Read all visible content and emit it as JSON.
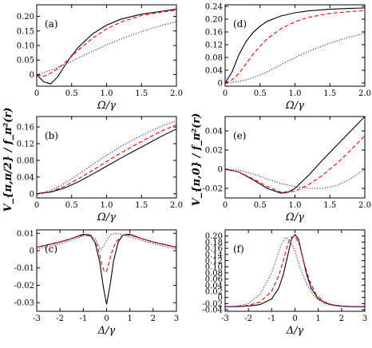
{
  "colors": {
    "solid": "#000000",
    "dashed": "#ff0000",
    "dotted": "#1a1aff"
  },
  "ylabels": {
    "row2_left": "V_{π,π/2} / f_π²(r)",
    "row2_right": "V_{π,0} / f_π²(r)"
  },
  "chart_data": [
    {
      "type": "line",
      "panel_label": "(a)",
      "xlabel": "Ω/γ",
      "xlim": [
        0,
        2
      ],
      "ylim": [
        -0.04,
        0.24
      ],
      "xticks": [
        0,
        0.5,
        1.0,
        1.5,
        2.0
      ],
      "xtick_labels": [
        "0",
        "0.5",
        "1.0",
        "1.5",
        "2.0"
      ],
      "yticks": [
        0,
        0.05,
        0.1,
        0.15,
        0.2
      ],
      "ytick_labels": [
        "0",
        "0.05",
        "0.10",
        "0.15",
        "0.20"
      ],
      "series": [
        {
          "style": "solid",
          "x": [
            0,
            0.1,
            0.2,
            0.3,
            0.4,
            0.5,
            0.6,
            0.8,
            1.0,
            1.2,
            1.5,
            1.8,
            2.0
          ],
          "y": [
            0,
            -0.025,
            -0.032,
            -0.008,
            0.03,
            0.065,
            0.095,
            0.14,
            0.17,
            0.19,
            0.208,
            0.218,
            0.225
          ]
        },
        {
          "style": "dashed",
          "x": [
            0,
            0.1,
            0.2,
            0.3,
            0.4,
            0.5,
            0.6,
            0.8,
            1.0,
            1.2,
            1.5,
            1.8,
            2.0
          ],
          "y": [
            0,
            -0.006,
            0.005,
            0.02,
            0.04,
            0.062,
            0.085,
            0.125,
            0.157,
            0.18,
            0.203,
            0.215,
            0.222
          ]
        },
        {
          "style": "dotted",
          "x": [
            0,
            0.1,
            0.2,
            0.3,
            0.4,
            0.5,
            0.6,
            0.8,
            1.0,
            1.2,
            1.5,
            1.8,
            2.0
          ],
          "y": [
            0,
            0.006,
            0.015,
            0.025,
            0.035,
            0.046,
            0.058,
            0.08,
            0.102,
            0.122,
            0.148,
            0.17,
            0.182
          ]
        }
      ]
    },
    {
      "type": "line",
      "panel_label": "(d)",
      "xlabel": "Ω/γ",
      "xlim": [
        0,
        2
      ],
      "ylim": [
        -0.01,
        0.245
      ],
      "xticks": [
        0,
        0.5,
        1.0,
        1.5,
        2.0
      ],
      "xtick_labels": [
        "0",
        "0.5",
        "1.0",
        "1.5",
        "2.0"
      ],
      "yticks": [
        0,
        0.04,
        0.08,
        0.12,
        0.16,
        0.2,
        0.24
      ],
      "ytick_labels": [
        "0",
        "0.04",
        "0.08",
        "0.12",
        "0.16",
        "0.20",
        "0.24"
      ],
      "series": [
        {
          "style": "solid",
          "x": [
            0,
            0.1,
            0.2,
            0.3,
            0.4,
            0.5,
            0.6,
            0.8,
            1.0,
            1.2,
            1.5,
            1.8,
            2.0
          ],
          "y": [
            0,
            0.035,
            0.09,
            0.13,
            0.158,
            0.178,
            0.193,
            0.21,
            0.22,
            0.226,
            0.231,
            0.234,
            0.235
          ]
        },
        {
          "style": "dashed",
          "x": [
            0,
            0.1,
            0.2,
            0.3,
            0.4,
            0.5,
            0.6,
            0.8,
            1.0,
            1.2,
            1.5,
            1.8,
            2.0
          ],
          "y": [
            0,
            0.01,
            0.03,
            0.06,
            0.09,
            0.115,
            0.138,
            0.17,
            0.192,
            0.206,
            0.218,
            0.224,
            0.227
          ]
        },
        {
          "style": "dotted",
          "x": [
            0,
            0.1,
            0.2,
            0.3,
            0.4,
            0.5,
            0.6,
            0.8,
            1.0,
            1.2,
            1.5,
            1.8,
            2.0
          ],
          "y": [
            0,
            0.002,
            0.005,
            0.01,
            0.017,
            0.025,
            0.035,
            0.057,
            0.08,
            0.1,
            0.125,
            0.145,
            0.155
          ]
        }
      ]
    },
    {
      "type": "line",
      "panel_label": "(b)",
      "xlabel": "Ω/γ",
      "xlim": [
        0,
        2
      ],
      "ylim": [
        -0.01,
        0.185
      ],
      "xticks": [
        0,
        0.5,
        1.0,
        1.5,
        2.0
      ],
      "xtick_labels": [
        "0",
        "0.5",
        "1.0",
        "1.5",
        "2.0"
      ],
      "yticks": [
        0,
        0.04,
        0.08,
        0.12,
        0.16
      ],
      "ytick_labels": [
        "0",
        "0.04",
        "0.08",
        "0.12",
        "0.16"
      ],
      "series": [
        {
          "style": "solid",
          "x": [
            0,
            0.2,
            0.4,
            0.6,
            0.8,
            1.0,
            1.2,
            1.4,
            1.6,
            1.8,
            2.0
          ],
          "y": [
            0,
            0.004,
            0.014,
            0.029,
            0.047,
            0.066,
            0.085,
            0.103,
            0.121,
            0.139,
            0.155
          ]
        },
        {
          "style": "dashed",
          "x": [
            0,
            0.2,
            0.4,
            0.6,
            0.8,
            1.0,
            1.2,
            1.4,
            1.6,
            1.8,
            2.0
          ],
          "y": [
            0,
            0.005,
            0.018,
            0.036,
            0.056,
            0.077,
            0.097,
            0.116,
            0.134,
            0.151,
            0.165
          ]
        },
        {
          "style": "dotted",
          "x": [
            0,
            0.2,
            0.4,
            0.6,
            0.8,
            1.0,
            1.2,
            1.4,
            1.6,
            1.8,
            2.0
          ],
          "y": [
            0,
            0.008,
            0.025,
            0.047,
            0.07,
            0.092,
            0.113,
            0.131,
            0.148,
            0.163,
            0.175
          ]
        }
      ]
    },
    {
      "type": "line",
      "panel_label": "(e)",
      "xlabel": "Ω/γ",
      "xlim": [
        0,
        2
      ],
      "ylim": [
        -0.03,
        0.055
      ],
      "xticks": [
        0,
        0.5,
        1.0,
        1.5,
        2.0
      ],
      "xtick_labels": [
        "0",
        "0.5",
        "1.0",
        "1.5",
        "2.0"
      ],
      "yticks": [
        -0.02,
        0,
        0.02,
        0.04
      ],
      "ytick_labels": [
        "-0.02",
        "0",
        "0.02",
        "0.04"
      ],
      "series": [
        {
          "style": "solid",
          "x": [
            0,
            0.2,
            0.4,
            0.6,
            0.8,
            0.9,
            1.0,
            1.2,
            1.4,
            1.6,
            1.8,
            2.0
          ],
          "y": [
            0,
            -0.003,
            -0.011,
            -0.02,
            -0.025,
            -0.024,
            -0.02,
            -0.006,
            0.01,
            0.025,
            0.04,
            0.055
          ]
        },
        {
          "style": "dashed",
          "x": [
            0,
            0.2,
            0.4,
            0.6,
            0.8,
            1.0,
            1.2,
            1.4,
            1.6,
            1.8,
            2.0
          ],
          "y": [
            0,
            -0.003,
            -0.01,
            -0.018,
            -0.024,
            -0.023,
            -0.016,
            -0.006,
            0.006,
            0.02,
            0.035
          ]
        },
        {
          "style": "dotted",
          "x": [
            0,
            0.2,
            0.4,
            0.6,
            0.8,
            1.0,
            1.2,
            1.4,
            1.6,
            1.8,
            2.0
          ],
          "y": [
            0,
            -0.001,
            -0.005,
            -0.01,
            -0.015,
            -0.018,
            -0.02,
            -0.02,
            -0.017,
            -0.01,
            0
          ]
        }
      ]
    },
    {
      "type": "line",
      "panel_label": "(c)",
      "xlabel": "Δ/γ",
      "xlim": [
        -3,
        3
      ],
      "ylim": [
        -0.035,
        0.012
      ],
      "xticks": [
        -3,
        -2,
        -1,
        0,
        1,
        2,
        3
      ],
      "xtick_labels": [
        "-3",
        "-2",
        "-1",
        "0",
        "1",
        "2",
        "3"
      ],
      "yticks": [
        -0.03,
        -0.02,
        -0.01,
        0,
        0.01
      ],
      "ytick_labels": [
        "-0.03",
        "-0.02",
        "-0.01",
        "0",
        "0.01"
      ],
      "series": [
        {
          "style": "solid",
          "x": [
            -3,
            -2.5,
            -2,
            -1.5,
            -1,
            -0.7,
            -0.5,
            -0.3,
            -0.15,
            0,
            0.15,
            0.3,
            0.5,
            0.7,
            1,
            1.5,
            2,
            2.5,
            3
          ],
          "y": [
            0.002,
            0.0035,
            0.005,
            0.007,
            0.0095,
            0.009,
            0.005,
            -0.006,
            -0.02,
            -0.031,
            -0.02,
            -0.006,
            0.005,
            0.009,
            0.0095,
            0.007,
            0.005,
            0.0035,
            0.002
          ]
        },
        {
          "style": "dashed",
          "x": [
            -3,
            -2.5,
            -2,
            -1.5,
            -1,
            -0.7,
            -0.4,
            -0.2,
            -0.1,
            0,
            0.2,
            0.4,
            0.7,
            1,
            1.5,
            2,
            2.5,
            3
          ],
          "y": [
            0.002,
            0.0035,
            0.005,
            0.007,
            0.009,
            0.0085,
            0.003,
            -0.008,
            -0.012,
            -0.012,
            -0.002,
            0.005,
            0.009,
            0.009,
            0.007,
            0.005,
            0.0035,
            0.002
          ]
        },
        {
          "style": "dotted",
          "x": [
            -3,
            -2.5,
            -2,
            -1.5,
            -1,
            -0.7,
            -0.5,
            -0.35,
            -0.25,
            -0.15,
            0,
            0.2,
            0.4,
            0.6,
            1,
            1.5,
            2,
            2.5,
            3
          ],
          "y": [
            0.001,
            0.0025,
            0.004,
            0.006,
            0.0085,
            0.009,
            0.007,
            0.003,
            0.0005,
            0.002,
            0.006,
            0.0095,
            0.01,
            0.0095,
            0.008,
            0.006,
            0.004,
            0.0025,
            0.001
          ]
        }
      ]
    },
    {
      "type": "line",
      "panel_label": "(f)",
      "xlabel": "Δ/γ",
      "xlim": [
        -3,
        3
      ],
      "ylim": [
        -0.045,
        0.22
      ],
      "xticks": [
        -3,
        -2,
        -1,
        0,
        1,
        2,
        3
      ],
      "xtick_labels": [
        "-3",
        "-2",
        "-1",
        "0",
        "1",
        "2",
        "3"
      ],
      "yticks": [
        -0.04,
        -0.02,
        0,
        0.02,
        0.04,
        0.06,
        0.08,
        0.1,
        0.12,
        0.14,
        0.16,
        0.18,
        0.2
      ],
      "ytick_labels": [
        "-0.04",
        "-0.02",
        "0",
        "0.02",
        "0.04",
        "0.06",
        "0.08",
        "0.10",
        "0.12",
        "0.14",
        "0.16",
        "0.18",
        "0.20"
      ],
      "series": [
        {
          "style": "solid",
          "x": [
            -3,
            -2.5,
            -2,
            -1.5,
            -1,
            -0.7,
            -0.5,
            -0.3,
            -0.15,
            0,
            0.15,
            0.3,
            0.5,
            0.7,
            1,
            1.5,
            2,
            2.5,
            3
          ],
          "y": [
            -0.03,
            -0.03,
            -0.028,
            -0.023,
            -0.005,
            0.03,
            0.075,
            0.14,
            0.19,
            0.205,
            0.19,
            0.14,
            0.075,
            0.03,
            -0.005,
            -0.023,
            -0.028,
            -0.03,
            -0.03
          ]
        },
        {
          "style": "dashed",
          "x": [
            -3,
            -2.5,
            -2,
            -1.5,
            -1,
            -0.7,
            -0.5,
            -0.3,
            -0.2,
            0,
            0.2,
            0.4,
            0.6,
            0.9,
            1.3,
            1.8,
            2.3,
            3
          ],
          "y": [
            -0.03,
            -0.029,
            -0.026,
            -0.015,
            0.02,
            0.07,
            0.12,
            0.175,
            0.195,
            0.2,
            0.17,
            0.11,
            0.06,
            0.01,
            -0.018,
            -0.027,
            -0.03,
            -0.03
          ]
        },
        {
          "style": "dotted",
          "x": [
            -3,
            -2.5,
            -2,
            -1.5,
            -1,
            -0.8,
            -0.6,
            -0.4,
            -0.2,
            0,
            0.2,
            0.5,
            0.8,
            1.2,
            1.7,
            2.2,
            3
          ],
          "y": [
            -0.03,
            -0.028,
            -0.02,
            0.01,
            0.08,
            0.125,
            0.17,
            0.195,
            0.185,
            0.15,
            0.1,
            0.045,
            0.005,
            -0.018,
            -0.027,
            -0.03,
            -0.03
          ]
        }
      ]
    }
  ]
}
